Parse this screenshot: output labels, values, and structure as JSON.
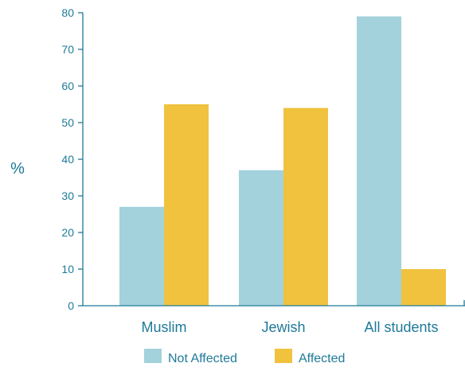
{
  "chart_data": {
    "type": "bar",
    "categories": [
      "Muslim",
      "Jewish",
      "All students"
    ],
    "series": [
      {
        "name": "Not Affected",
        "color": "#a3d2dc",
        "values": [
          27,
          37,
          79
        ]
      },
      {
        "name": "Affected",
        "color": "#f0c23e",
        "values": [
          55,
          54,
          10
        ]
      }
    ],
    "ylabel": "%",
    "ylim": [
      0,
      80
    ],
    "yticks": [
      0,
      10,
      20,
      30,
      40,
      50,
      60,
      70,
      80
    ],
    "grid": false,
    "legend": "bottom",
    "axis_color": "#1e7a99"
  }
}
